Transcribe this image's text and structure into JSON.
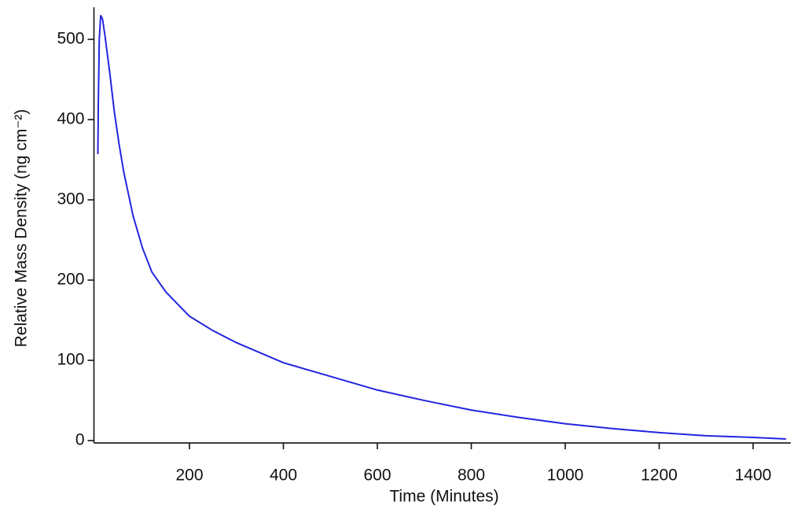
{
  "chart_data": {
    "type": "line",
    "xlabel": "Time (Minutes)",
    "ylabel": "Relative Mass Density (ng cm⁻²)",
    "xlim": [
      0,
      1480
    ],
    "xticks": [
      200,
      400,
      600,
      800,
      1000,
      1200,
      1400
    ],
    "ylim": [
      -3,
      540
    ],
    "yticks": [
      0,
      100,
      200,
      300,
      400,
      500
    ],
    "grid": false,
    "series": [
      {
        "name": "Relative Mass Density",
        "color": "#2424e0",
        "x": [
          5,
          6,
          8,
          11,
          15,
          20,
          30,
          40,
          50,
          60,
          80,
          100,
          120,
          150,
          200,
          250,
          300,
          400,
          500,
          600,
          700,
          800,
          900,
          1000,
          1100,
          1200,
          1300,
          1400,
          1470
        ],
        "values": [
          357,
          420,
          500,
          530,
          525,
          505,
          460,
          410,
          370,
          335,
          280,
          240,
          210,
          185,
          155,
          137,
          122,
          97,
          80,
          63,
          50,
          38,
          29,
          21,
          15,
          10,
          6,
          4,
          2
        ]
      }
    ]
  }
}
